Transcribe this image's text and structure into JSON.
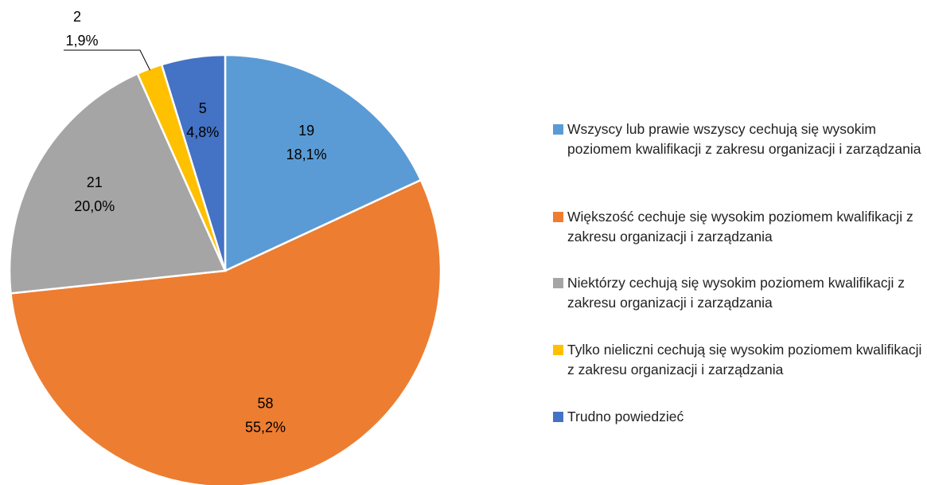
{
  "chart_data": {
    "type": "pie",
    "series": [
      {
        "name": "Wszyscy lub prawie wszyscy cechują się wysokim poziomem kwalifikacji z zakresu organizacji i zarządzania",
        "color": "#5b9bd5",
        "values": [
          19
        ]
      },
      {
        "name": "Większość cechuje się wysokim poziomem kwalifikacji z zakresu organizacji i zarządzania",
        "color": "#ed7d31",
        "values": [
          58
        ]
      },
      {
        "name": "Niektórzy cechują się wysokim poziomem kwalifikacji z zakresu organizacji i zarządzania",
        "color": "#a5a5a5",
        "values": [
          21
        ]
      },
      {
        "name": "Tylko nieliczni cechują się wysokim poziomem kwalifikacji z zakresu organizacji i zarządzania",
        "color": "#ffc000",
        "values": [
          2
        ]
      },
      {
        "name": "Trudno powiedzieć",
        "color": "#4472c4",
        "values": [
          5
        ]
      }
    ],
    "percent_labels": [
      "18,1%",
      "55,2%",
      "20,0%",
      "1,9%",
      "4,8%"
    ],
    "legend": "right"
  }
}
